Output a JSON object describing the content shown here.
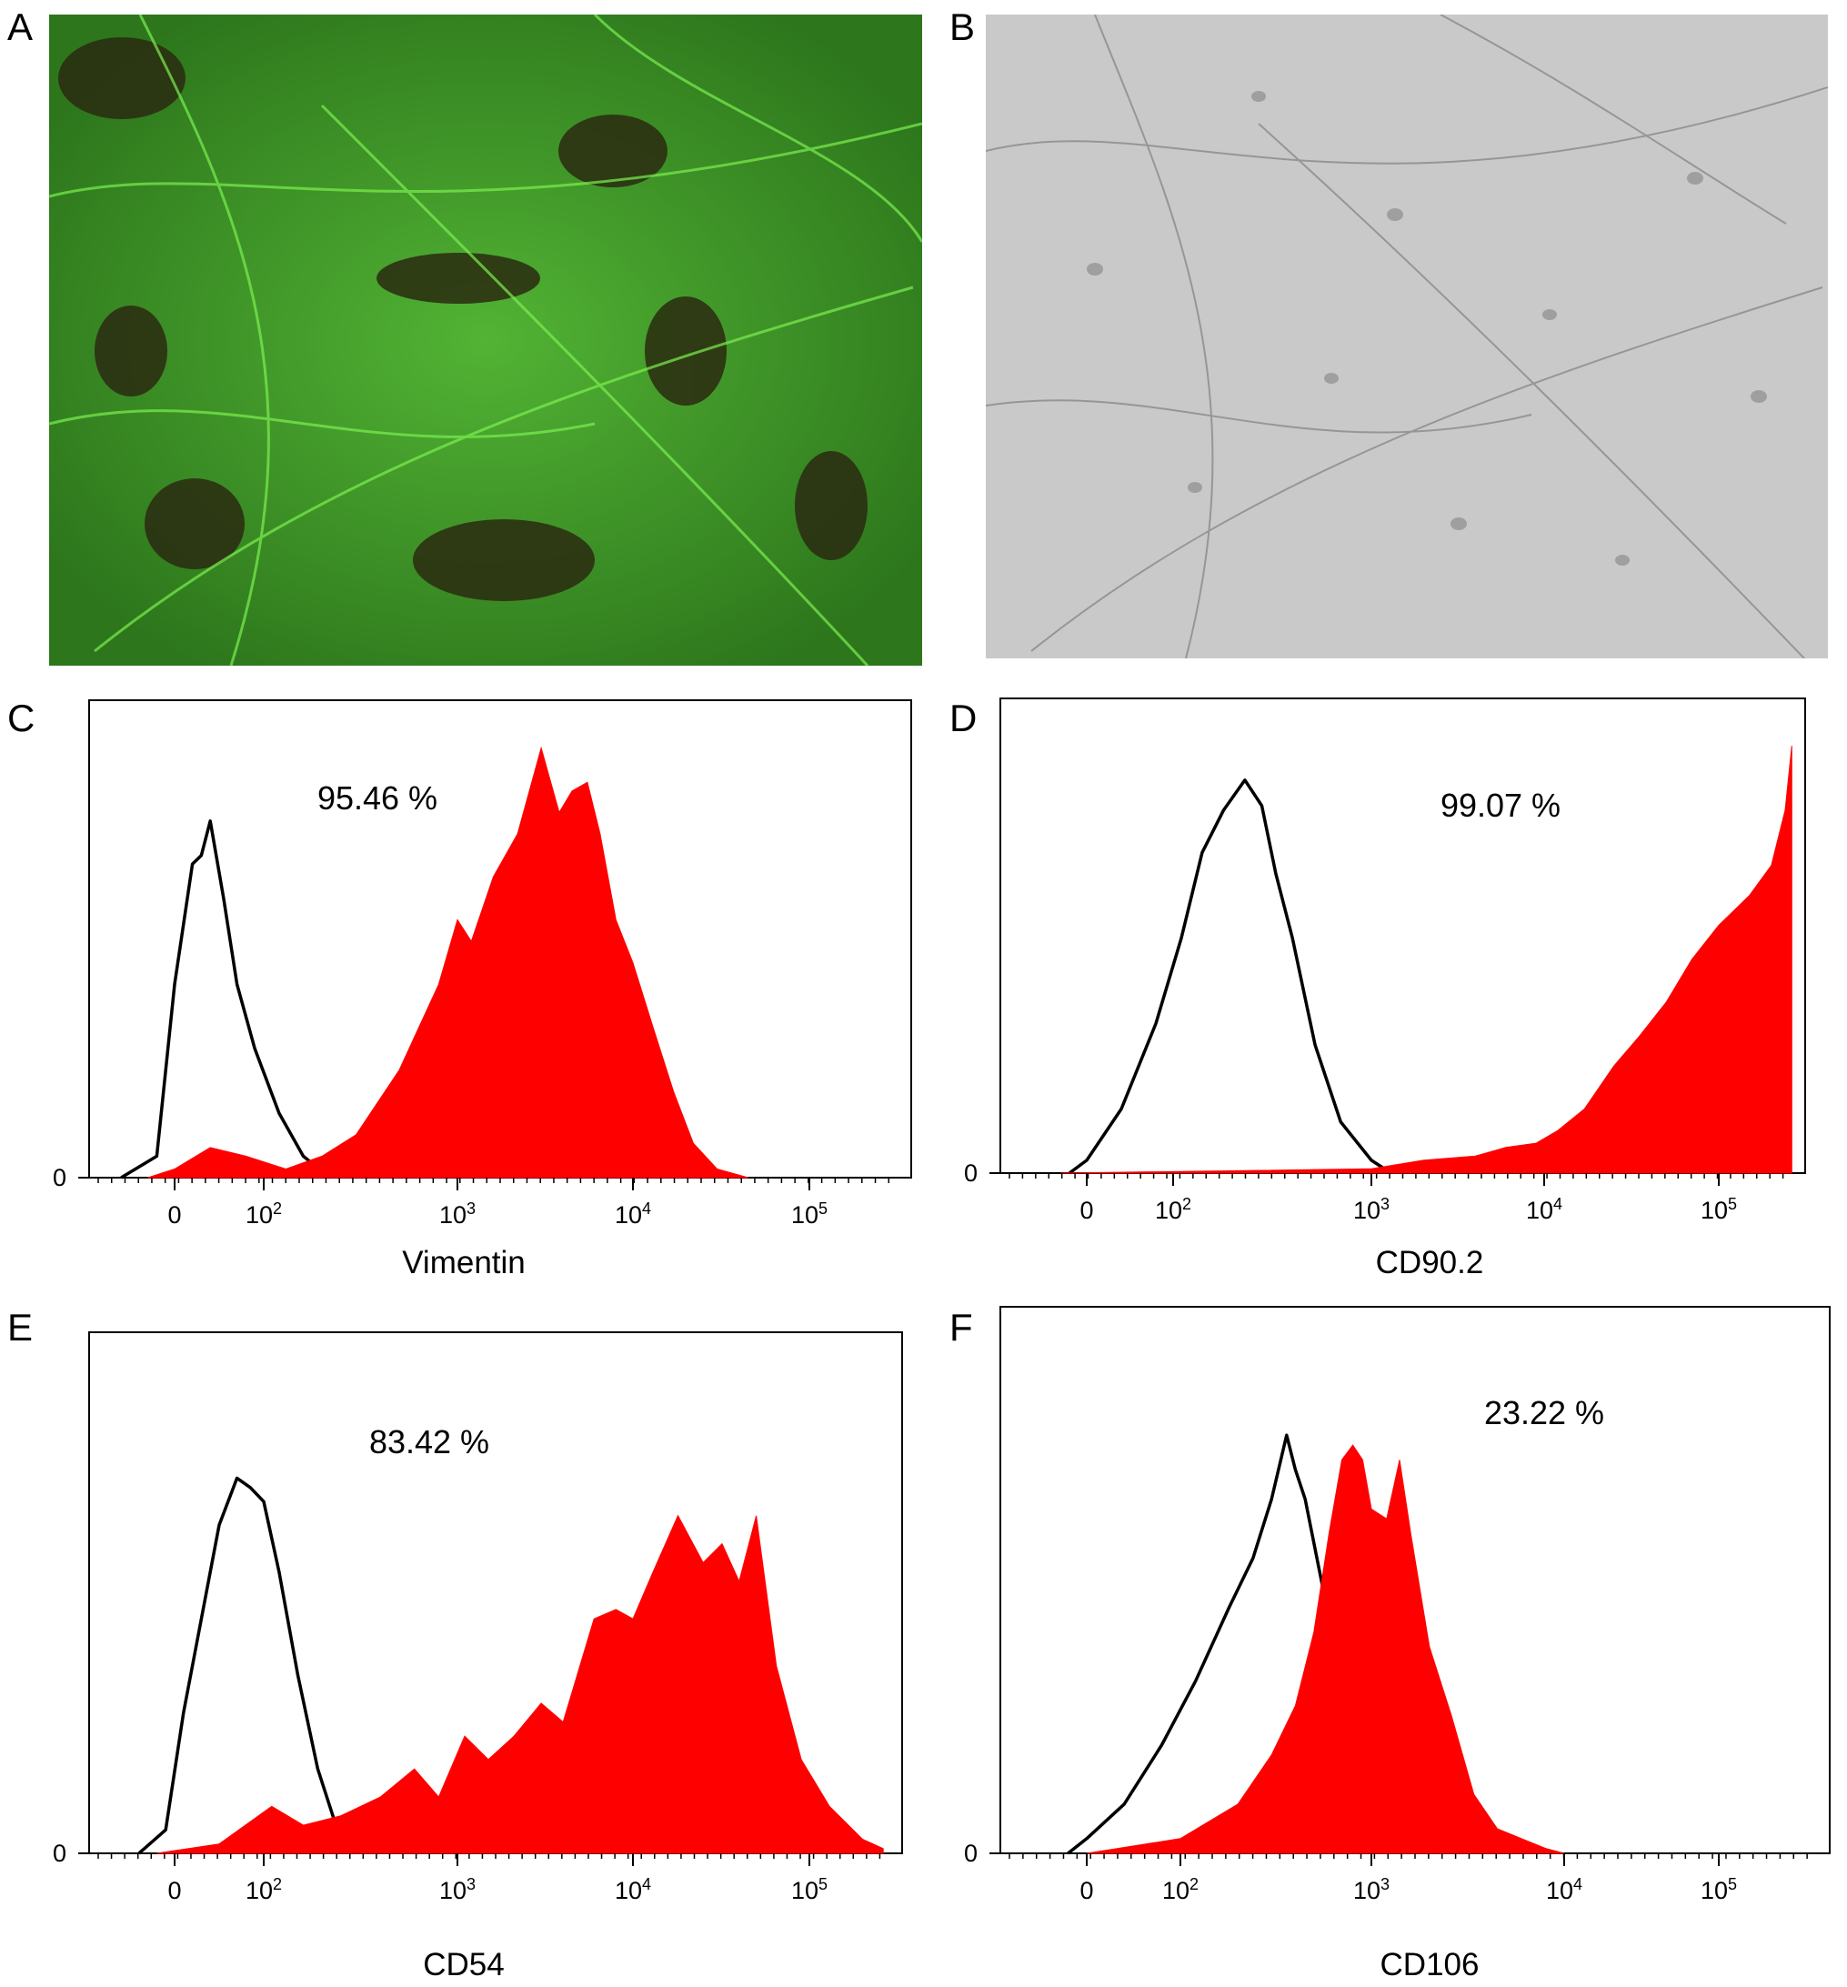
{
  "panels": {
    "A": {
      "label": "A",
      "image": "fluorescence-micrograph-green",
      "color": "#3ad13a"
    },
    "B": {
      "label": "B",
      "image": "phase-contrast-micrograph-gray",
      "color": "#c8c8c8"
    }
  },
  "colors": {
    "positive_fill": "#ff0000",
    "control_line": "#000000"
  },
  "chart_data": [
    {
      "panel": "C",
      "type": "area",
      "xlabel": "Vimentin",
      "percent": "95.46 %",
      "x_scale": "biexponential",
      "x_ticks": [
        "0",
        "10^2",
        "10^3",
        "10^4",
        "10^5"
      ],
      "y_ticks": [
        "0"
      ],
      "series": [
        {
          "role": "control",
          "style": "black-outline",
          "x": [
            -60,
            -20,
            0,
            20,
            30,
            40,
            55,
            70,
            90,
            120,
            160,
            220
          ],
          "y": [
            0,
            0.05,
            0.45,
            0.73,
            0.75,
            0.83,
            0.65,
            0.45,
            0.3,
            0.15,
            0.05,
            0
          ]
        },
        {
          "role": "stained",
          "style": "red-fill",
          "x": [
            -30,
            0,
            40,
            80,
            130,
            200,
            300,
            500,
            800,
            1000,
            1200,
            1600,
            2200,
            3000,
            3800,
            4500,
            5500,
            6500,
            8000,
            10000,
            13000,
            17000,
            22000,
            30000,
            45000
          ],
          "y": [
            0,
            0.02,
            0.07,
            0.05,
            0.02,
            0.05,
            0.1,
            0.25,
            0.45,
            0.6,
            0.55,
            0.7,
            0.8,
            1.0,
            0.85,
            0.9,
            0.92,
            0.8,
            0.6,
            0.5,
            0.35,
            0.2,
            0.08,
            0.02,
            0
          ]
        }
      ]
    },
    {
      "panel": "D",
      "type": "area",
      "xlabel": "CD90.2",
      "percent": "99.07 %",
      "x_scale": "biexponential",
      "x_ticks": [
        "0",
        "10^2",
        "10^3",
        "10^4",
        "10^5"
      ],
      "y_ticks": [
        "0"
      ],
      "series": [
        {
          "role": "control",
          "style": "black-outline",
          "x": [
            -20,
            0,
            40,
            80,
            110,
            140,
            180,
            230,
            280,
            330,
            400,
            520,
            700,
            1000,
            1300
          ],
          "y": [
            0,
            0.03,
            0.15,
            0.35,
            0.55,
            0.75,
            0.85,
            0.92,
            0.86,
            0.7,
            0.55,
            0.3,
            0.12,
            0.03,
            0
          ]
        },
        {
          "role": "stained",
          "style": "red-fill",
          "x": [
            -30,
            1000,
            2000,
            4000,
            6000,
            9000,
            12000,
            17000,
            25000,
            35000,
            50000,
            70000,
            100000,
            150000,
            200000,
            240000,
            262000
          ],
          "y": [
            0,
            0.01,
            0.03,
            0.04,
            0.06,
            0.07,
            0.1,
            0.15,
            0.25,
            0.32,
            0.4,
            0.5,
            0.58,
            0.65,
            0.72,
            0.85,
            1.0
          ]
        }
      ]
    },
    {
      "panel": "E",
      "type": "area",
      "xlabel": "CD54",
      "percent": "83.42 %",
      "x_scale": "biexponential",
      "x_ticks": [
        "0",
        "10^2",
        "10^3",
        "10^4",
        "10^5"
      ],
      "y_ticks": [
        "0"
      ],
      "series": [
        {
          "role": "control",
          "style": "black-outline",
          "x": [
            -40,
            -10,
            10,
            30,
            50,
            70,
            85,
            100,
            120,
            150,
            190,
            240,
            300
          ],
          "y": [
            0,
            0.05,
            0.3,
            0.5,
            0.7,
            0.8,
            0.78,
            0.75,
            0.6,
            0.38,
            0.18,
            0.05,
            0
          ]
        },
        {
          "role": "stained",
          "style": "red-fill",
          "x": [
            -20,
            50,
            110,
            160,
            250,
            400,
            600,
            800,
            1100,
            1500,
            2100,
            3000,
            4000,
            6000,
            8000,
            10000,
            13000,
            18000,
            25000,
            32000,
            40000,
            50000,
            65000,
            90000,
            130000,
            200000,
            262000
          ],
          "y": [
            0,
            0.02,
            0.1,
            0.06,
            0.08,
            0.12,
            0.18,
            0.12,
            0.25,
            0.2,
            0.25,
            0.32,
            0.28,
            0.5,
            0.52,
            0.5,
            0.6,
            0.72,
            0.62,
            0.66,
            0.58,
            0.72,
            0.4,
            0.2,
            0.1,
            0.03,
            0.01
          ]
        }
      ]
    },
    {
      "panel": "F",
      "type": "area",
      "xlabel": "CD106",
      "percent": "23.22 %",
      "x_scale": "biexponential",
      "x_ticks": [
        "0",
        "10^2",
        "10^3",
        "10^4",
        "10^5"
      ],
      "y_ticks": [
        "0"
      ],
      "series": [
        {
          "role": "control",
          "style": "black-outline",
          "x": [
            -20,
            0,
            40,
            80,
            120,
            180,
            240,
            300,
            360,
            400,
            450,
            550,
            700,
            900,
            1200
          ],
          "y": [
            0,
            0.03,
            0.1,
            0.22,
            0.35,
            0.5,
            0.6,
            0.72,
            0.85,
            0.78,
            0.72,
            0.55,
            0.35,
            0.12,
            0
          ]
        },
        {
          "role": "stained",
          "style": "red-fill",
          "x": [
            0,
            100,
            200,
            300,
            400,
            500,
            600,
            700,
            800,
            900,
            1000,
            1200,
            1400,
            1600,
            2000,
            2600,
            3400,
            4500,
            6000,
            8000,
            10000
          ],
          "y": [
            0,
            0.03,
            0.1,
            0.2,
            0.3,
            0.45,
            0.65,
            0.8,
            0.83,
            0.8,
            0.7,
            0.68,
            0.8,
            0.65,
            0.42,
            0.28,
            0.12,
            0.05,
            0.03,
            0.01,
            0
          ]
        }
      ]
    }
  ]
}
